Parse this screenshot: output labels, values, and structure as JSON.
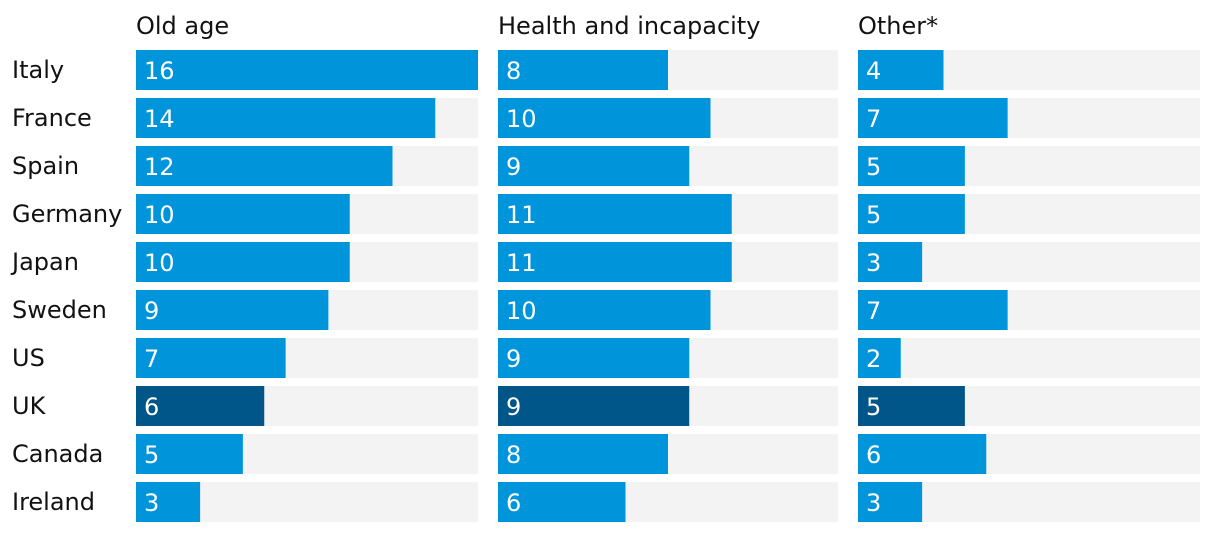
{
  "chart_data": {
    "type": "bar",
    "orientation": "horizontal",
    "layout": "small-multiples",
    "categories": [
      "Italy",
      "France",
      "Spain",
      "Germany",
      "Japan",
      "Sweden",
      "US",
      "UK",
      "Canada",
      "Ireland"
    ],
    "highlight_category": "UK",
    "series": [
      {
        "name": "Old age",
        "values": [
          16,
          14,
          12,
          10,
          10,
          9,
          7,
          6,
          5,
          3
        ],
        "xlim": [
          0,
          16
        ]
      },
      {
        "name": "Health and incapacity",
        "values": [
          8,
          10,
          9,
          11,
          11,
          10,
          9,
          9,
          8,
          6
        ],
        "xlim": [
          0,
          16
        ]
      },
      {
        "name": "Other*",
        "values": [
          4,
          7,
          5,
          5,
          3,
          7,
          2,
          5,
          6,
          3
        ],
        "xlim": [
          0,
          16
        ]
      }
    ],
    "colors": {
      "bar": "#0094db",
      "highlight": "#005689",
      "track": "#f3f3f3",
      "text": "#121212",
      "value_text": "#ffffff"
    }
  }
}
